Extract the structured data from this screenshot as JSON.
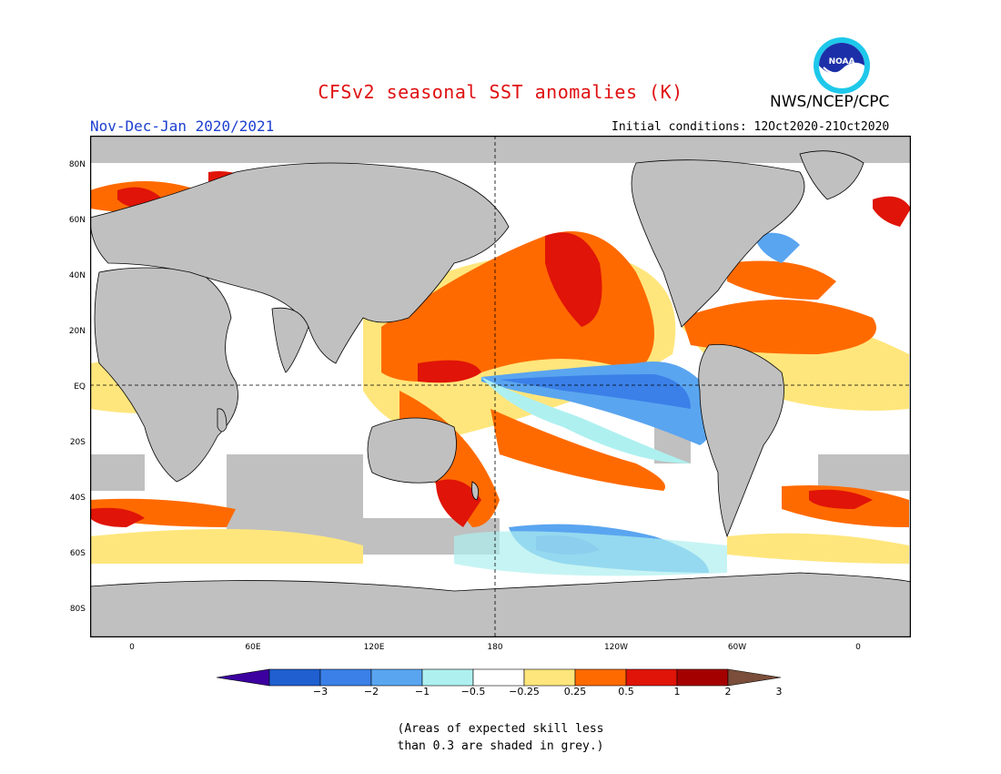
{
  "header": {
    "title": "CFSv2 seasonal SST anomalies (K)",
    "agency": "NWS/NCEP/CPC",
    "logo_text": "NOAA",
    "season": "Nov-Dec-Jan 2020/2021",
    "initial_conditions": "Initial conditions: 12Oct2020-21Oct2020"
  },
  "map": {
    "latitude_labels": [
      "80N",
      "60N",
      "40N",
      "20N",
      "EQ",
      "20S",
      "40S",
      "60S",
      "80S"
    ],
    "longitude_labels": [
      "0",
      "60E",
      "120E",
      "180",
      "120W",
      "60W",
      "0"
    ],
    "land_color": "#c0c0c0",
    "grey_meaning_mask_color": "#c0c0c0"
  },
  "colorbar": {
    "labels": [
      "−3",
      "−2",
      "−1",
      "−0.5",
      "−0.25",
      "0.25",
      "0.5",
      "1",
      "2",
      "3"
    ],
    "colors": [
      "#3c00a0",
      "#1f5fd0",
      "#3a80e8",
      "#5aa5f0",
      "#aef0f0",
      "#ffffff",
      "#ffe67c",
      "#ff6a00",
      "#e01408",
      "#a50000",
      "#7a4e3a"
    ]
  },
  "note": {
    "line1": "(Areas of expected skill less",
    "line2": "than 0.3 are shaded in grey.)"
  }
}
